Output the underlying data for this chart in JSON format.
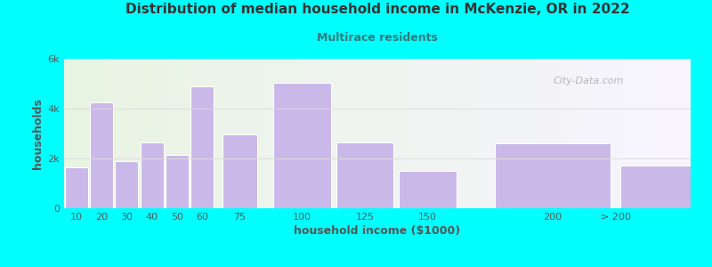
{
  "title": "Distribution of median household income in McKenzie, OR in 2022",
  "subtitle": "Multirace residents",
  "xlabel": "household income ($1000)",
  "ylabel": "households",
  "background_color": "#00FFFF",
  "bar_color": "#c9b8e8",
  "bar_edge_color": "#ffffff",
  "categories": [
    "10",
    "20",
    "30",
    "40",
    "50",
    "60",
    "75",
    "100",
    "125",
    "150",
    "200",
    "> 200"
  ],
  "values": [
    1650,
    4250,
    1900,
    2650,
    2150,
    4900,
    2950,
    5050,
    2650,
    1500,
    2600,
    1700
  ],
  "bar_lefts": [
    5,
    15,
    25,
    35,
    45,
    55,
    67.5,
    87.5,
    112.5,
    137.5,
    175,
    225
  ],
  "bar_widths": [
    10,
    10,
    10,
    10,
    10,
    10,
    15,
    25,
    25,
    25,
    50,
    50
  ],
  "xlim": [
    5,
    255
  ],
  "xtick_positions": [
    10,
    20,
    30,
    40,
    50,
    60,
    75,
    100,
    125,
    150,
    200,
    225
  ],
  "xtick_labels": [
    "10",
    "20",
    "30",
    "40",
    "50",
    "60",
    "75",
    "100",
    "125",
    "150",
    "200",
    "> 200"
  ],
  "ylim": [
    0,
    6000
  ],
  "yticks": [
    0,
    2000,
    4000,
    6000
  ],
  "ytick_labels": [
    "0",
    "2k",
    "4k",
    "6k"
  ],
  "title_fontsize": 11,
  "subtitle_fontsize": 9,
  "axis_label_fontsize": 9,
  "tick_fontsize": 8,
  "title_color": "#333333",
  "subtitle_color": "#337777",
  "axis_label_color": "#555555",
  "watermark_text": "City-Data.com",
  "watermark_color": "#aaaaaa",
  "grid_color": "#dddddd",
  "plot_bg_left_color": "#e8f5e2",
  "plot_bg_right_color": "#f8f4ff"
}
